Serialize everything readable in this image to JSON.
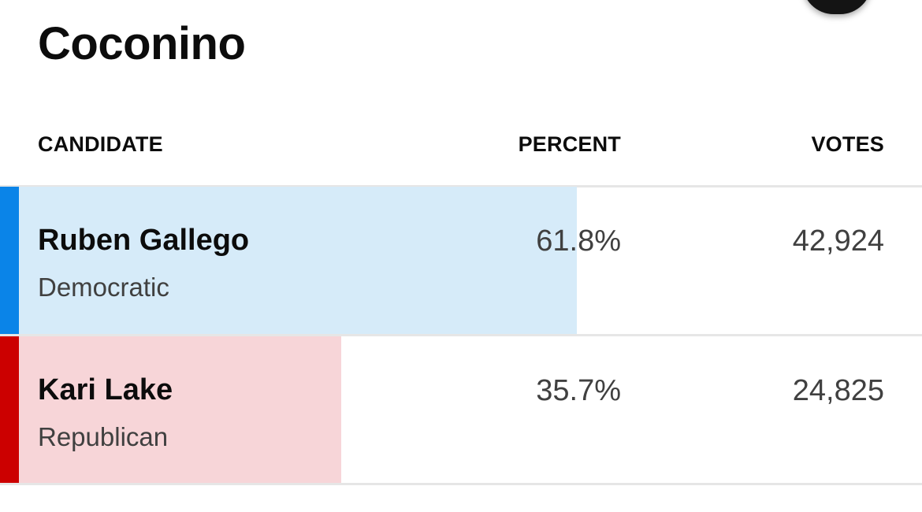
{
  "region": {
    "title": "Coconino"
  },
  "table": {
    "headers": {
      "candidate": "CANDIDATE",
      "percent": "PERCENT",
      "votes": "VOTES"
    },
    "rows": [
      {
        "name": "Ruben Gallego",
        "party": "Democratic",
        "percent": "61.8%",
        "percent_value": 61.8,
        "votes": "42,924",
        "party_color": "#0a84e8",
        "bar_color": "#d6ebf9"
      },
      {
        "name": "Kari Lake",
        "party": "Republican",
        "percent": "35.7%",
        "percent_value": 35.7,
        "votes": "24,825",
        "party_color": "#cc0000",
        "bar_color": "#f7d5d8"
      }
    ]
  },
  "icons": {
    "corner_button": "circle-button-icon"
  }
}
